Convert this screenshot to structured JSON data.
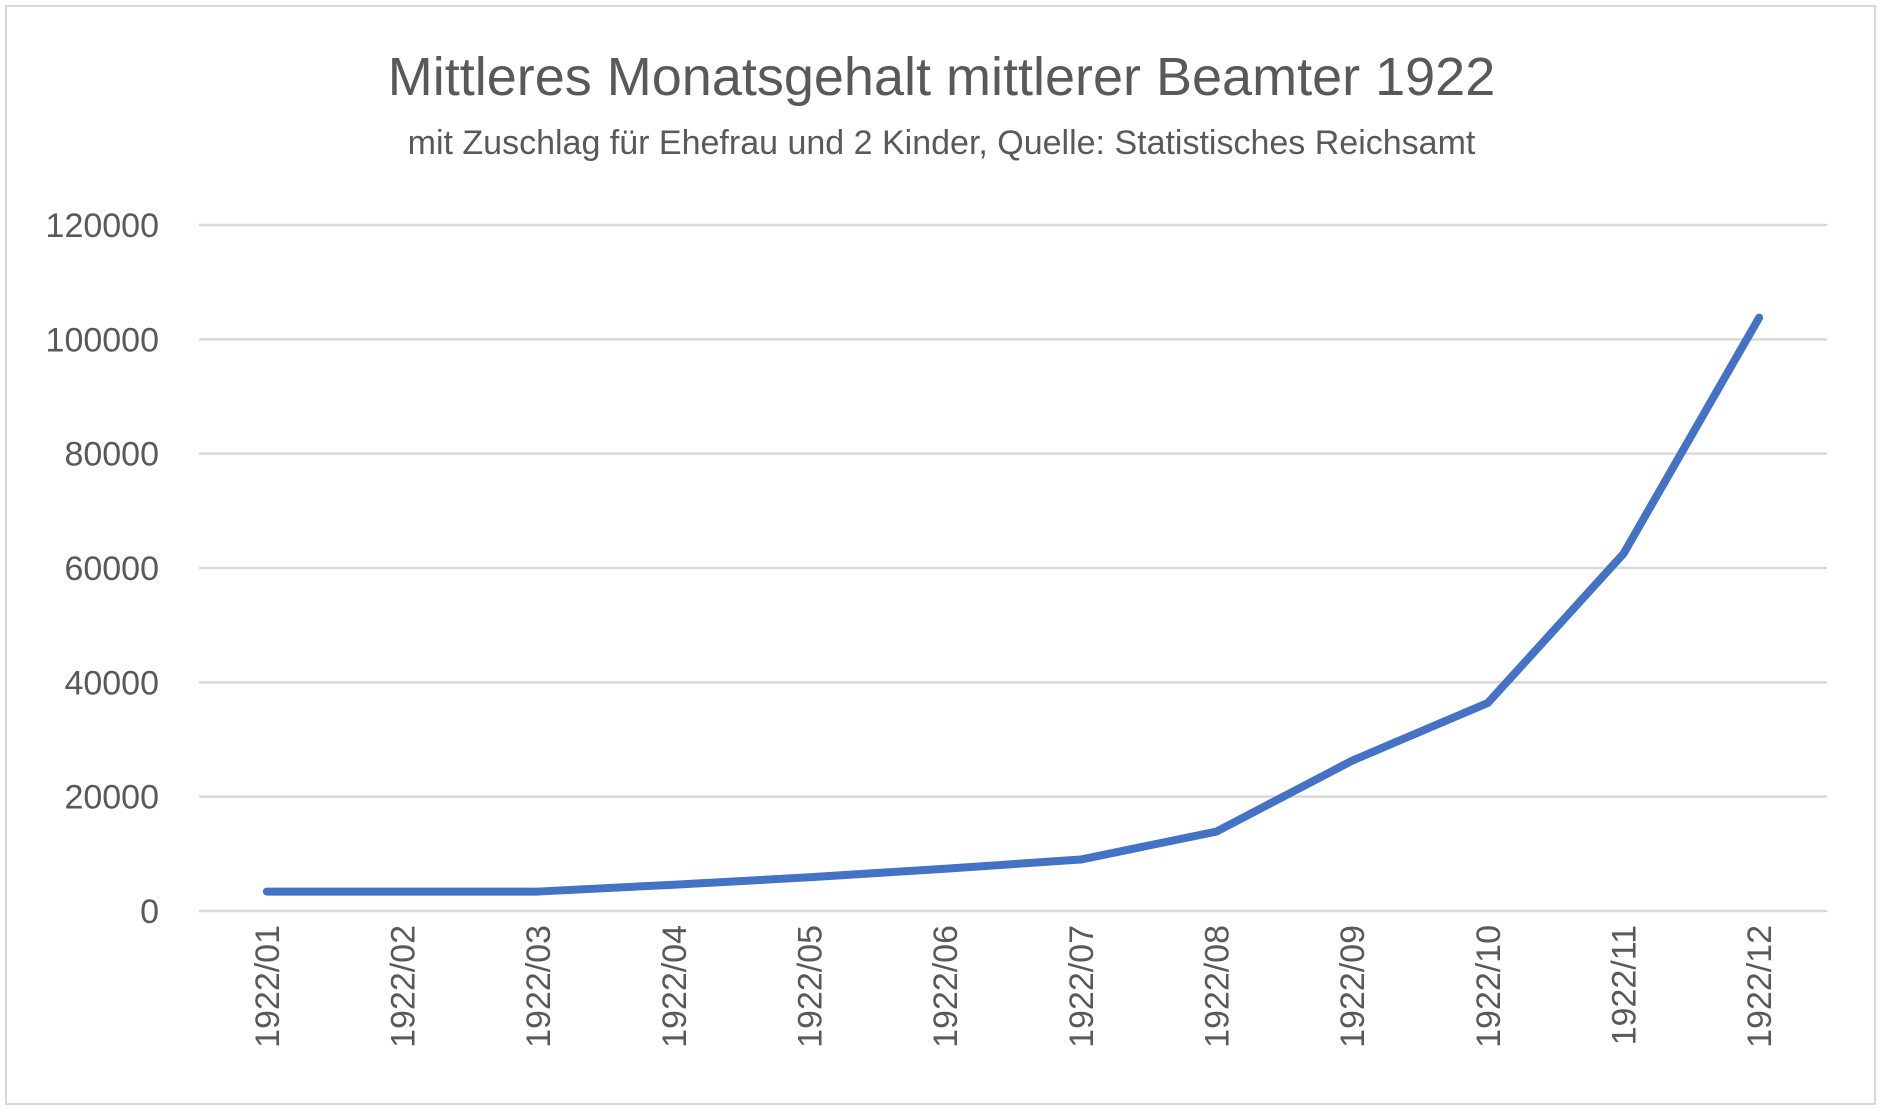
{
  "chart_data": {
    "type": "line",
    "title": "Mittleres Monatsgehalt mittlerer Beamter 1922",
    "subtitle": "mit Zuschlag für Ehefrau und 2 Kinder, Quelle: Statistisches Reichsamt",
    "xlabel": "",
    "ylabel": "",
    "ylim": [
      0,
      120000
    ],
    "yticks": [
      0,
      20000,
      40000,
      60000,
      80000,
      100000,
      120000
    ],
    "grid": true,
    "legend": "none",
    "categories": [
      "1922/01",
      "1922/02",
      "1922/03",
      "1922/04",
      "1922/05",
      "1922/06",
      "1922/07",
      "1922/08",
      "1922/09",
      "1922/10",
      "1922/11",
      "1922/12"
    ],
    "series": [
      {
        "name": "Monatsgehalt",
        "color": "#4472c4",
        "values": [
          3400,
          3400,
          3400,
          4600,
          5900,
          7400,
          9000,
          13900,
          26300,
          36400,
          62500,
          103800
        ]
      }
    ]
  }
}
